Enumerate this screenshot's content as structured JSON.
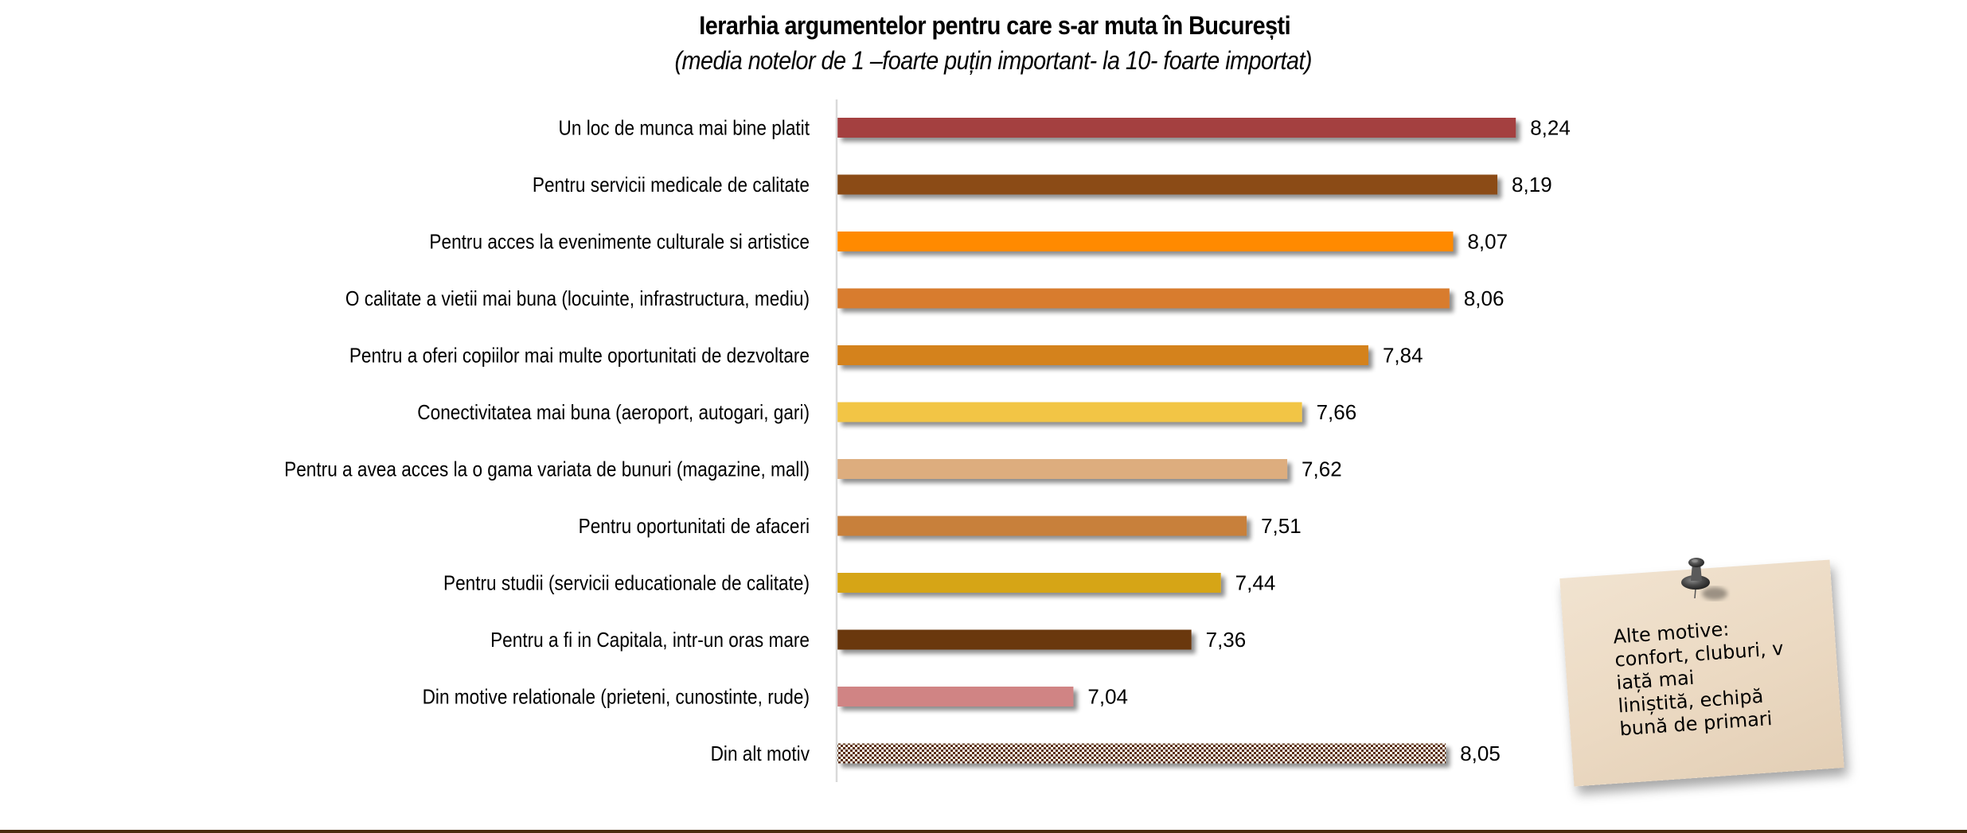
{
  "chart_data": {
    "type": "bar",
    "orientation": "horizontal",
    "title": "Ierarhia argumentelor pentru care s-ar muta în București",
    "subtitle": "(media notelor de 1 –foarte puțin important- la 10- foarte importat)",
    "xlabel": "",
    "ylabel": "",
    "xlim": [
      6.4,
      8.3
    ],
    "grid": false,
    "legend": "none",
    "categories": [
      "Un loc de munca mai bine platit",
      "Pentru servicii medicale de calitate",
      "Pentru acces la evenimente culturale si artistice",
      "O calitate a vietii mai buna (locuinte, infrastructura, mediu)",
      "Pentru a oferi copiilor mai multe oportunitati de dezvoltare",
      "Conectivitatea mai buna (aeroport, autogari, gari)",
      "Pentru a avea acces la o gama variata de bunuri (magazine, mall)",
      "Pentru oportunitati de afaceri",
      "Pentru studii (servicii educationale de calitate)",
      "Pentru a fi in Capitala, intr-un oras mare",
      "Din motive relationale (prieteni, cunostinte, rude)",
      "Din alt motiv"
    ],
    "values": [
      8.24,
      8.19,
      8.07,
      8.06,
      7.84,
      7.66,
      7.62,
      7.51,
      7.44,
      7.36,
      7.04,
      8.05
    ],
    "value_labels": [
      "8,24",
      "8,19",
      "8,07",
      "8,06",
      "7,84",
      "7,66",
      "7,62",
      "7,51",
      "7,44",
      "7,36",
      "7,04",
      "8,05"
    ],
    "colors": [
      "#A44141",
      "#8B4B12",
      "#FF8A00",
      "#D87B2E",
      "#D4821A",
      "#F2C545",
      "#DDAD7E",
      "#C8803A",
      "#D6A513",
      "#6B3810",
      "#D08484",
      "pattern-checker"
    ],
    "pattern_color": "#5A2E0A"
  },
  "note": {
    "lines": [
      "Alte motive:",
      "confort, cluburi, v",
      "iață mai",
      "liniștită, echipă",
      "bună de primari"
    ],
    "pin_icon": "pushpin-icon"
  },
  "theme": {
    "accent_rule": "#4A2A0C",
    "axis_color": "#D9D9D9"
  }
}
